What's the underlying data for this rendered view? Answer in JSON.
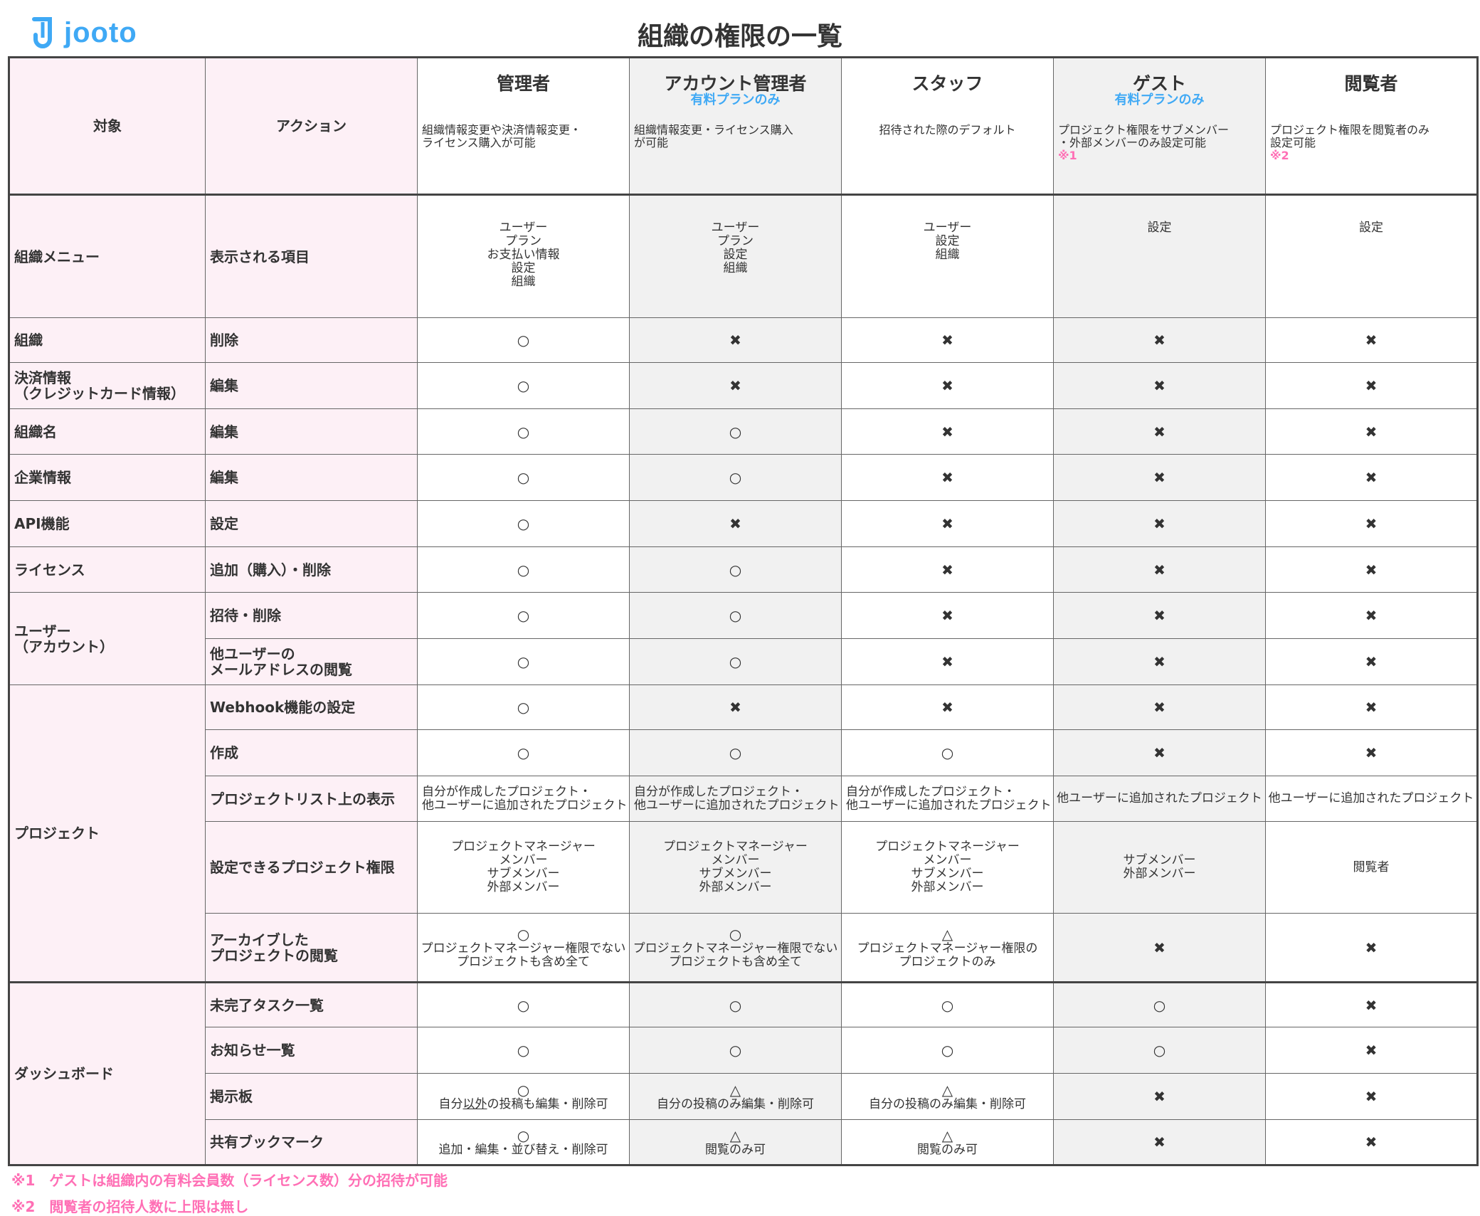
{
  "logo": {
    "text": "jooto",
    "color": "#3fa9f5"
  },
  "title": "組織の権限の一覧",
  "header": {
    "target": "対象",
    "action": "アクション",
    "roles": [
      {
        "name": "管理者",
        "sub": "",
        "desc": "組織情報変更や決済情報変更・\nライセンス購入が可能",
        "note": ""
      },
      {
        "name": "アカウント管理者",
        "sub": "有料プランのみ",
        "desc": "組織情報変更・ライセンス購入\nが可能",
        "note": ""
      },
      {
        "name": "スタッフ",
        "sub": "",
        "desc": "招待された際のデフォルト",
        "note": ""
      },
      {
        "name": "ゲスト",
        "sub": "有料プランのみ",
        "desc": "プロジェクト権限をサブメンバー\n・外部メンバーのみ設定可能",
        "note": "※1"
      },
      {
        "name": "閲覧者",
        "sub": "",
        "desc": "プロジェクト権限を閲覧者のみ\n設定可能",
        "note": "※2"
      }
    ]
  },
  "colors": {
    "label_bg": "#fdf0f6",
    "gray_col": "#f1f1f1",
    "accent": "#3fa9f5",
    "note": "#ff6fb5"
  },
  "rows": [
    {
      "target": "組織メニュー",
      "action": "表示される項目",
      "type": "list",
      "cells": [
        {
          "text": "ユーザー\nプラン\nお支払い情報\n設定\n組織"
        },
        {
          "text": "ユーザー\nプラン\n設定\n組織"
        },
        {
          "text": "ユーザー\n設定\n組織"
        },
        {
          "text": "設定"
        },
        {
          "text": "設定"
        }
      ]
    },
    {
      "target": "組織",
      "action": "削除",
      "cells": [
        {
          "mark": "○"
        },
        {
          "mark": "✖"
        },
        {
          "mark": "✖"
        },
        {
          "mark": "✖"
        },
        {
          "mark": "✖"
        }
      ]
    },
    {
      "target": "決済情報\n（クレジットカード情報）",
      "action": "編集",
      "cells": [
        {
          "mark": "○"
        },
        {
          "mark": "✖"
        },
        {
          "mark": "✖"
        },
        {
          "mark": "✖"
        },
        {
          "mark": "✖"
        }
      ]
    },
    {
      "target": "組織名",
      "action": "編集",
      "cells": [
        {
          "mark": "○"
        },
        {
          "mark": "○"
        },
        {
          "mark": "✖"
        },
        {
          "mark": "✖"
        },
        {
          "mark": "✖"
        }
      ]
    },
    {
      "target": "企業情報",
      "action": "編集",
      "cells": [
        {
          "mark": "○"
        },
        {
          "mark": "○"
        },
        {
          "mark": "✖"
        },
        {
          "mark": "✖"
        },
        {
          "mark": "✖"
        }
      ]
    },
    {
      "target": "API機能",
      "action": "設定",
      "cells": [
        {
          "mark": "○"
        },
        {
          "mark": "✖"
        },
        {
          "mark": "✖"
        },
        {
          "mark": "✖"
        },
        {
          "mark": "✖"
        }
      ]
    },
    {
      "target": "ライセンス",
      "action": "追加（購入）・削除",
      "cells": [
        {
          "mark": "○"
        },
        {
          "mark": "○"
        },
        {
          "mark": "✖"
        },
        {
          "mark": "✖"
        },
        {
          "mark": "✖"
        }
      ]
    },
    {
      "target": "ユーザー\n（アカウント）",
      "span": 2,
      "action": "招待・削除",
      "cells": [
        {
          "mark": "○"
        },
        {
          "mark": "○"
        },
        {
          "mark": "✖"
        },
        {
          "mark": "✖"
        },
        {
          "mark": "✖"
        }
      ]
    },
    {
      "action": "他ユーザーの\nメールアドレスの閲覧",
      "cells": [
        {
          "mark": "○"
        },
        {
          "mark": "○"
        },
        {
          "mark": "✖"
        },
        {
          "mark": "✖"
        },
        {
          "mark": "✖"
        }
      ]
    },
    {
      "target": "プロジェクト",
      "span": 5,
      "action": "Webhook機能の設定",
      "cells": [
        {
          "mark": "○"
        },
        {
          "mark": "✖"
        },
        {
          "mark": "✖"
        },
        {
          "mark": "✖"
        },
        {
          "mark": "✖"
        }
      ]
    },
    {
      "action": "作成",
      "cells": [
        {
          "mark": "○"
        },
        {
          "mark": "○"
        },
        {
          "mark": "○"
        },
        {
          "mark": "✖"
        },
        {
          "mark": "✖"
        }
      ]
    },
    {
      "action": "プロジェクトリスト上の表示",
      "type": "left",
      "cells": [
        {
          "note": "自分が作成したプロジェクト・\n他ユーザーに追加されたプロジェクト"
        },
        {
          "note": "自分が作成したプロジェクト・\n他ユーザーに追加されたプロジェクト"
        },
        {
          "note": "自分が作成したプロジェクト・\n他ユーザーに追加されたプロジェクト"
        },
        {
          "note": "他ユーザーに追加されたプロジェクト"
        },
        {
          "note": "他ユーザーに追加されたプロジェクト"
        }
      ]
    },
    {
      "action": "設定できるプロジェクト権限",
      "cells": [
        {
          "note": "プロジェクトマネージャー\nメンバー\nサブメンバー\n外部メンバー"
        },
        {
          "note": "プロジェクトマネージャー\nメンバー\nサブメンバー\n外部メンバー"
        },
        {
          "note": "プロジェクトマネージャー\nメンバー\nサブメンバー\n外部メンバー"
        },
        {
          "note": "サブメンバー\n外部メンバー"
        },
        {
          "note": "閲覧者"
        }
      ]
    },
    {
      "action": "アーカイブした\nプロジェクトの閲覧",
      "cells": [
        {
          "mark": "○",
          "note": "プロジェクトマネージャー権限でない\nプロジェクトも含め全て"
        },
        {
          "mark": "○",
          "note": "プロジェクトマネージャー権限でない\nプロジェクトも含め全て"
        },
        {
          "mark": "△",
          "note": "プロジェクトマネージャー権限の\nプロジェクトのみ"
        },
        {
          "mark": "✖"
        },
        {
          "mark": "✖"
        }
      ]
    },
    {
      "target": "ダッシュボード",
      "span": 4,
      "action": "未完了タスク一覧",
      "cells": [
        {
          "mark": "○"
        },
        {
          "mark": "○"
        },
        {
          "mark": "○"
        },
        {
          "mark": "○"
        },
        {
          "mark": "✖"
        }
      ]
    },
    {
      "action": "お知らせ一覧",
      "cells": [
        {
          "mark": "○"
        },
        {
          "mark": "○"
        },
        {
          "mark": "○"
        },
        {
          "mark": "○"
        },
        {
          "mark": "✖"
        }
      ]
    },
    {
      "action": "掲示板",
      "cells": [
        {
          "mark": "○",
          "pre": "自分",
          "u": "以外",
          "post": "の投稿も編集・削除可"
        },
        {
          "mark": "△",
          "note": "自分の投稿のみ編集・削除可"
        },
        {
          "mark": "△",
          "note": "自分の投稿のみ編集・削除可"
        },
        {
          "mark": "✖"
        },
        {
          "mark": "✖"
        }
      ]
    },
    {
      "action": "共有ブックマーク",
      "cells": [
        {
          "mark": "○",
          "note": "追加・編集・並び替え・削除可"
        },
        {
          "mark": "△",
          "note": "閲覧のみ可"
        },
        {
          "mark": "△",
          "note": "閲覧のみ可"
        },
        {
          "mark": "✖"
        },
        {
          "mark": "✖"
        }
      ]
    }
  ],
  "footnotes": [
    "※1　ゲストは組織内の有料会員数（ライセンス数）分の招待が可能",
    "※2　閲覧者の招待人数に上限は無し"
  ]
}
